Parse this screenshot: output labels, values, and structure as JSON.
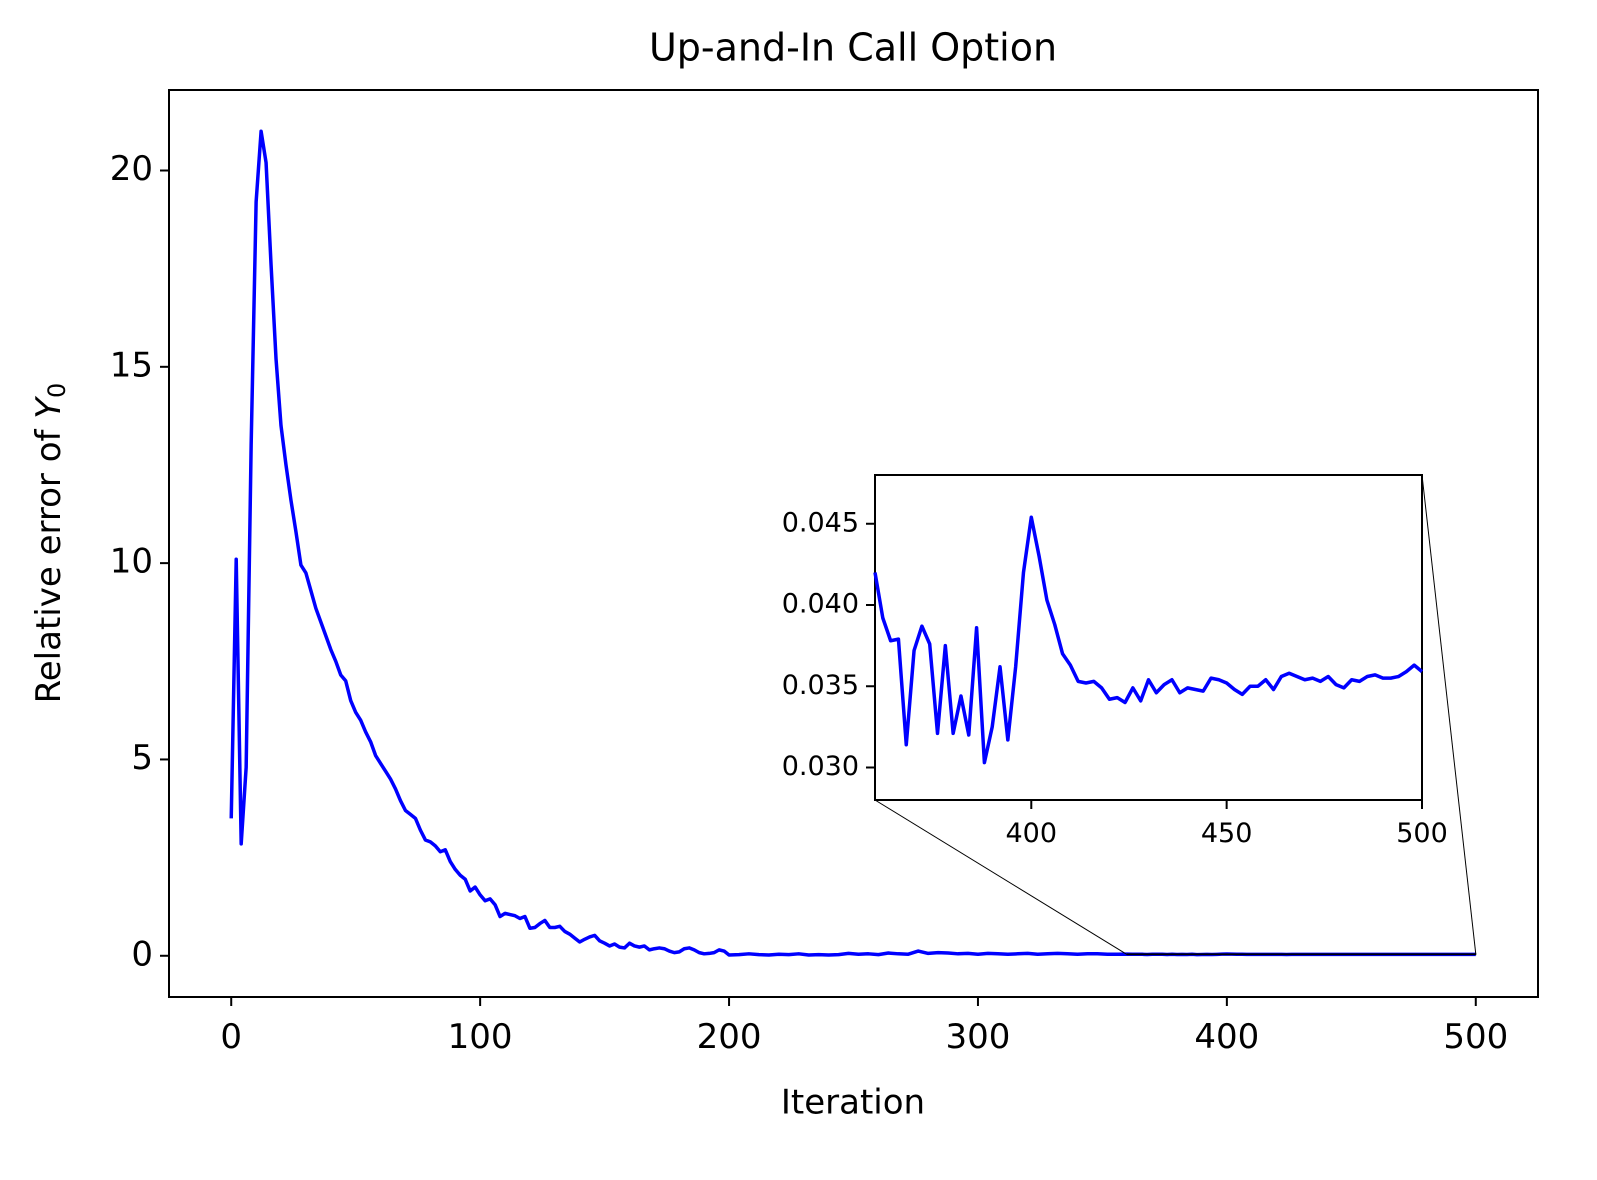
{
  "chart_data": {
    "type": "line",
    "title": "Up-and-In Call Option",
    "xlabel": "Iteration",
    "ylabel": "Relative error of ",
    "ylabel_symbol": "Y",
    "ylabel_subscript": "0",
    "x": [
      0,
      2,
      4,
      6,
      8,
      10,
      12,
      14,
      16,
      18,
      20,
      22,
      24,
      26,
      28,
      30,
      32,
      34,
      36,
      38,
      40,
      42,
      44,
      46,
      48,
      50,
      52,
      54,
      56,
      58,
      60,
      62,
      64,
      66,
      68,
      70,
      72,
      74,
      76,
      78,
      80,
      82,
      84,
      86,
      88,
      90,
      92,
      94,
      96,
      98,
      100,
      102,
      104,
      106,
      108,
      110,
      112,
      114,
      116,
      118,
      120,
      122,
      124,
      126,
      128,
      130,
      132,
      134,
      136,
      138,
      140,
      142,
      144,
      146,
      148,
      150,
      152,
      154,
      156,
      158,
      160,
      162,
      164,
      166,
      168,
      170,
      172,
      174,
      176,
      178,
      180,
      182,
      184,
      186,
      188,
      190,
      192,
      194,
      196,
      198,
      200,
      204,
      208,
      212,
      216,
      220,
      224,
      228,
      232,
      236,
      240,
      244,
      248,
      252,
      256,
      260,
      264,
      268,
      272,
      276,
      280,
      284,
      288,
      292,
      296,
      300,
      304,
      308,
      312,
      316,
      320,
      324,
      328,
      332,
      336,
      340,
      344,
      348,
      352,
      356,
      360,
      362,
      364,
      366,
      368,
      370,
      372,
      374,
      376,
      378,
      380,
      382,
      384,
      386,
      388,
      390,
      392,
      394,
      396,
      398,
      400,
      402,
      404,
      406,
      408,
      410,
      412,
      414,
      416,
      418,
      420,
      422,
      424,
      426,
      428,
      430,
      432,
      434,
      436,
      438,
      440,
      442,
      444,
      446,
      448,
      450,
      452,
      454,
      456,
      458,
      460,
      462,
      464,
      466,
      468,
      470,
      472,
      474,
      476,
      478,
      480,
      482,
      484,
      486,
      488,
      490,
      492,
      494,
      496,
      498,
      500
    ],
    "series": [
      {
        "color": "#0000ff",
        "values": [
          3.5,
          10.1,
          2.85,
          4.8,
          13,
          19.2,
          21.0,
          20.2,
          17.6,
          15.2,
          13.5,
          12.5,
          11.6,
          10.8,
          9.95,
          9.75,
          9.3,
          8.85,
          8.5,
          8.15,
          7.8,
          7.5,
          7.15,
          7.0,
          6.5,
          6.2,
          6.0,
          5.7,
          5.45,
          5.1,
          4.9,
          4.7,
          4.5,
          4.25,
          3.95,
          3.7,
          3.6,
          3.5,
          3.2,
          2.95,
          2.9,
          2.8,
          2.65,
          2.7,
          2.4,
          2.2,
          2.05,
          1.95,
          1.65,
          1.75,
          1.55,
          1.4,
          1.45,
          1.3,
          1.0,
          1.08,
          1.05,
          1.02,
          0.95,
          1.0,
          0.7,
          0.72,
          0.82,
          0.9,
          0.72,
          0.72,
          0.75,
          0.62,
          0.55,
          0.45,
          0.35,
          0.42,
          0.48,
          0.52,
          0.38,
          0.32,
          0.25,
          0.3,
          0.22,
          0.2,
          0.32,
          0.25,
          0.22,
          0.25,
          0.15,
          0.18,
          0.2,
          0.18,
          0.12,
          0.08,
          0.1,
          0.18,
          0.2,
          0.15,
          0.08,
          0.05,
          0.06,
          0.08,
          0.15,
          0.12,
          0.02,
          0.03,
          0.05,
          0.03,
          0.02,
          0.04,
          0.03,
          0.05,
          0.02,
          0.03,
          0.02,
          0.03,
          0.06,
          0.04,
          0.05,
          0.03,
          0.07,
          0.05,
          0.04,
          0.12,
          0.06,
          0.08,
          0.07,
          0.05,
          0.06,
          0.04,
          0.06,
          0.05,
          0.04,
          0.05,
          0.06,
          0.04,
          0.05,
          0.06,
          0.05,
          0.04,
          0.05,
          0.05,
          0.04,
          0.04,
          0.042,
          0.0392,
          0.0378,
          0.0379,
          0.0314,
          0.0372,
          0.0387,
          0.0376,
          0.0321,
          0.0375,
          0.0321,
          0.0344,
          0.032,
          0.0386,
          0.0303,
          0.0325,
          0.0362,
          0.0317,
          0.0362,
          0.042,
          0.0454,
          0.043,
          0.0403,
          0.0388,
          0.037,
          0.0363,
          0.0353,
          0.0352,
          0.0353,
          0.0349,
          0.0342,
          0.0343,
          0.034,
          0.0349,
          0.0341,
          0.0354,
          0.0346,
          0.0351,
          0.0354,
          0.0346,
          0.0349,
          0.0348,
          0.0347,
          0.0355,
          0.0354,
          0.0352,
          0.0348,
          0.0345,
          0.035,
          0.035,
          0.0354,
          0.0348,
          0.0356,
          0.0358,
          0.0356,
          0.0354,
          0.0355,
          0.0353,
          0.0356,
          0.0351,
          0.0349,
          0.0354,
          0.0353,
          0.0356,
          0.0357,
          0.0355,
          0.0355,
          0.0356,
          0.0359,
          0.0363,
          0.0359
        ]
      }
    ],
    "xlim": [
      -25,
      525
    ],
    "ylim": [
      -1.05,
      22.05
    ],
    "xticks": [
      0,
      100,
      200,
      300,
      400,
      500
    ],
    "yticks": [
      0,
      5,
      10,
      15,
      20
    ],
    "inset": {
      "xlim": [
        360,
        500
      ],
      "ylim": [
        0.028,
        0.048
      ],
      "xticks": [
        400,
        450,
        500
      ],
      "yticks": [
        {
          "value": 0.03,
          "label": "0.030"
        },
        {
          "value": 0.035,
          "label": "0.035"
        },
        {
          "value": 0.04,
          "label": "0.040"
        },
        {
          "value": 0.045,
          "label": "0.045"
        }
      ]
    }
  }
}
